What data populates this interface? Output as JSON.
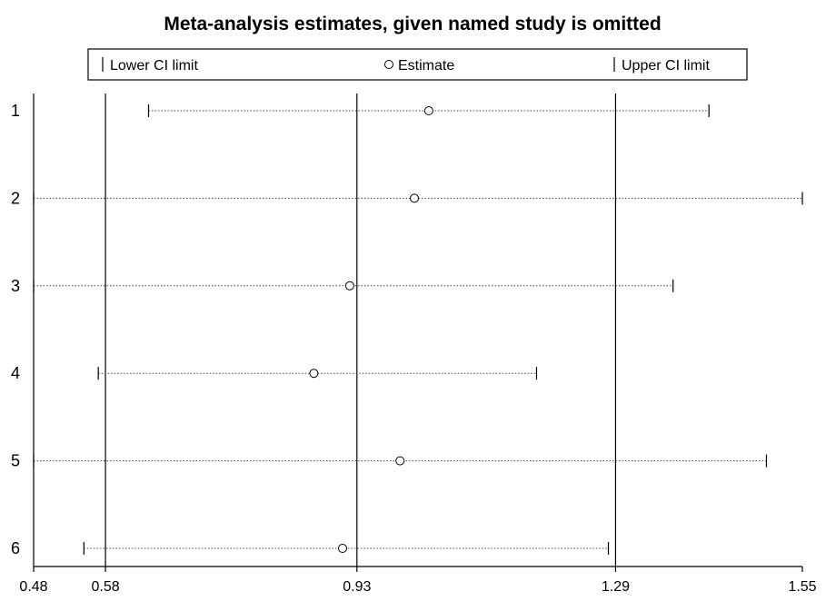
{
  "chart_data": {
    "type": "forest",
    "title": "Meta-analysis estimates, given named study is omitted",
    "legend": {
      "placement": "top",
      "entries": [
        {
          "marker": "bar",
          "label": "Lower CI limit"
        },
        {
          "marker": "circle",
          "label": "Estimate"
        },
        {
          "marker": "bar",
          "label": "Upper CI limit"
        }
      ]
    },
    "xlim": [
      0.48,
      1.55
    ],
    "x_ticks": [
      0.48,
      0.58,
      0.93,
      1.29,
      1.55
    ],
    "x_tick_labels": [
      "0.48",
      "0.58",
      "0.93",
      "1.29",
      "1.55"
    ],
    "reference_lines": [
      0.58,
      0.93,
      1.29
    ],
    "studies": [
      {
        "label": "1",
        "lower": 0.64,
        "estimate": 1.03,
        "upper": 1.42
      },
      {
        "label": "2",
        "lower": 0.48,
        "estimate": 1.01,
        "upper": 1.55
      },
      {
        "label": "3",
        "lower": 0.48,
        "estimate": 0.92,
        "upper": 1.37
      },
      {
        "label": "4",
        "lower": 0.57,
        "estimate": 0.87,
        "upper": 1.18
      },
      {
        "label": "5",
        "lower": 0.48,
        "estimate": 0.99,
        "upper": 1.5
      },
      {
        "label": "6",
        "lower": 0.55,
        "estimate": 0.91,
        "upper": 1.28
      }
    ]
  }
}
